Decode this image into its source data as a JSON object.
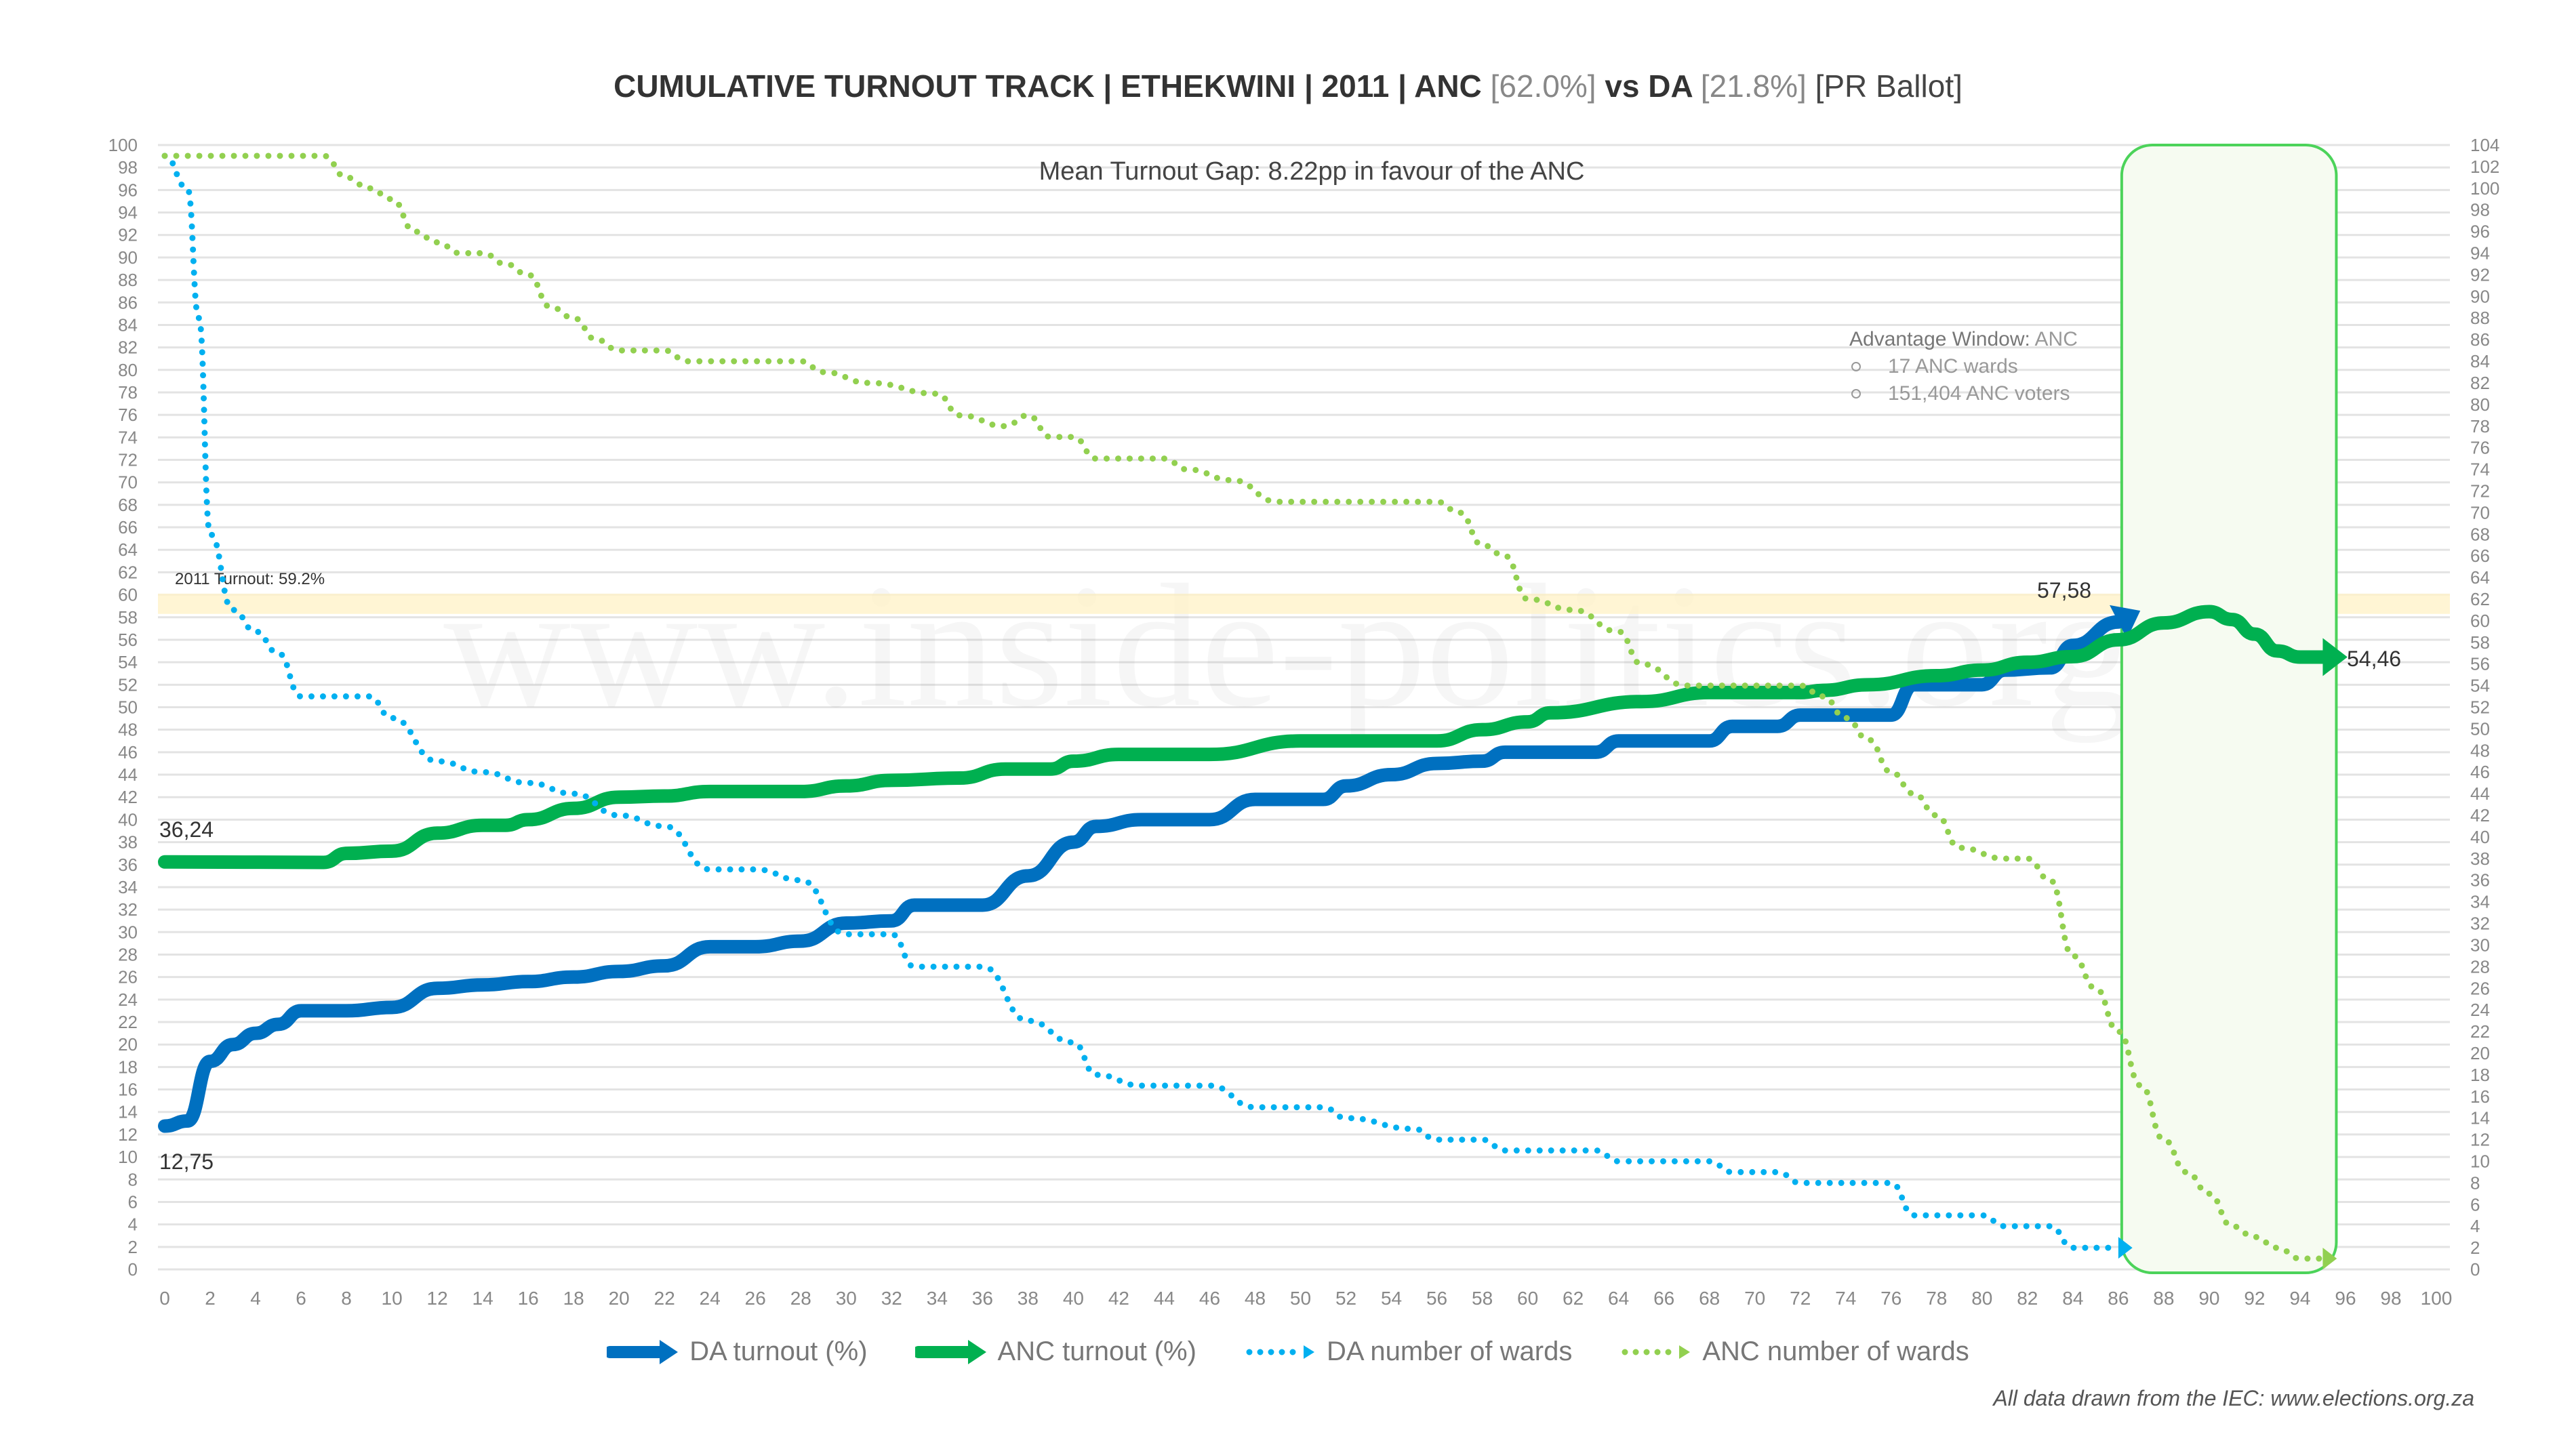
{
  "title": {
    "main": "CUMULATIVE TURNOUT TRACK | ETHEKWINI | 2011 | ANC ",
    "anc_pct": "[62.0%]",
    "vs": " vs DA ",
    "da_pct": "[21.8%]",
    "ballot": " [PR Ballot]"
  },
  "source": "All data drawn from the IEC: www.elections.org.za",
  "watermark": "www.inside-politics.org",
  "chart_data": {
    "type": "line",
    "title": "CUMULATIVE TURNOUT TRACK | ETHEKWINI | 2011 | ANC [62.0%] vs DA [21.8%] [PR Ballot]",
    "xlim": [
      0,
      100
    ],
    "ylim_left": [
      0,
      100
    ],
    "ylim_right": [
      0,
      104
    ],
    "grid": true,
    "legend": "bottom",
    "annotations": {
      "mean_gap": "Mean Turnout Gap: 8.22pp in favour of the ANC",
      "turnout_line_label": "2011 Turnout: 59.2%",
      "turnout_line_value": 59.2,
      "advantage_title": "Advantage Window:",
      "advantage_party": "ANC",
      "advantage_items": [
        "17 ANC wards",
        "151,404 ANC voters"
      ],
      "advantage_window": [
        86,
        95
      ],
      "labels": {
        "anc_start": "36,24",
        "da_start": "12,75",
        "da_end": "57,58",
        "anc_end": "54,46"
      }
    },
    "series": [
      {
        "name": "DA turnout (%)",
        "axis": "left",
        "color": "#0070C0",
        "style": "solid",
        "x": [
          0,
          1,
          2,
          3,
          4,
          5,
          6,
          8,
          10,
          12,
          14,
          16,
          18,
          20,
          22,
          24,
          26,
          28,
          30,
          32,
          33,
          36,
          38,
          40,
          41,
          43,
          46,
          48,
          51,
          52,
          54,
          56,
          58,
          59,
          63,
          64,
          68,
          69,
          71,
          72,
          76,
          77,
          80,
          81,
          83,
          84,
          86
        ],
        "y": [
          12.75,
          13.2,
          18.5,
          20,
          21,
          21.8,
          23,
          23,
          23.3,
          25,
          25.3,
          25.6,
          26,
          26.5,
          27,
          28.7,
          28.7,
          29.2,
          30.8,
          31,
          32.4,
          32.4,
          35,
          38,
          39.4,
          40,
          40,
          41.8,
          41.8,
          43,
          44,
          45,
          45.2,
          46,
          46,
          47,
          47,
          48.3,
          48.3,
          49.3,
          49.3,
          52,
          52,
          53.3,
          53.5,
          55.5,
          57.58
        ]
      },
      {
        "name": "ANC turnout (%)",
        "axis": "left",
        "color": "#00B050",
        "style": "solid",
        "x": [
          0,
          7,
          8,
          10,
          12,
          14,
          15,
          16,
          18,
          20,
          22,
          24,
          28,
          30,
          32,
          35,
          37,
          39,
          40,
          42,
          46,
          50,
          56,
          58,
          60,
          61,
          65,
          68,
          72,
          73,
          75,
          78,
          80,
          82,
          84,
          86,
          88,
          90,
          91,
          92,
          93,
          94,
          95
        ],
        "y": [
          36.24,
          36.2,
          37,
          37.2,
          38.8,
          39.5,
          39.5,
          40,
          41,
          42,
          42.1,
          42.5,
          42.5,
          43,
          43.5,
          43.7,
          44.5,
          44.5,
          45.2,
          45.8,
          45.8,
          47,
          47,
          48,
          48.7,
          49.5,
          50.5,
          51.3,
          51.3,
          51.5,
          52,
          52.8,
          53.3,
          54,
          54.5,
          56,
          57.5,
          58.5,
          57.8,
          56.5,
          55,
          54.46,
          54.46
        ]
      },
      {
        "name": "DA number of wards",
        "axis": "right",
        "color": "#00B0F0",
        "style": "dotted",
        "x": [
          0,
          1,
          1.5,
          2,
          3,
          4,
          5,
          6,
          8,
          9,
          10,
          12,
          14,
          16,
          18,
          20,
          22,
          24,
          26,
          28,
          30,
          32,
          33,
          36,
          38,
          40,
          41,
          43,
          46,
          48,
          51,
          52,
          55,
          56,
          58,
          59,
          63,
          64,
          68,
          69,
          71,
          72,
          76,
          77,
          80,
          81,
          83,
          84,
          86
        ],
        "y": [
          103,
          100,
          88,
          68,
          61,
          59,
          57,
          53,
          53,
          53,
          51,
          47,
          46,
          45,
          44,
          42,
          41,
          37,
          37,
          36,
          31,
          31,
          28,
          28,
          23,
          21,
          18,
          17,
          17,
          15,
          15,
          14,
          13,
          12,
          12,
          11,
          11,
          10,
          10,
          9,
          9,
          8,
          8,
          5,
          5,
          4,
          4,
          2,
          2
        ]
      },
      {
        "name": "ANC number of wards",
        "axis": "right",
        "color": "#92D050",
        "style": "dotted",
        "x": [
          0,
          7,
          8,
          9,
          10,
          11,
          12,
          13,
          14,
          15,
          16,
          17,
          18,
          19,
          20,
          22,
          23,
          28,
          29,
          31,
          34,
          35,
          37,
          38,
          39,
          40,
          41,
          44,
          45,
          47,
          49,
          56,
          57,
          58,
          59,
          60,
          62,
          64,
          65,
          67,
          72,
          73,
          74,
          75,
          76,
          77,
          78,
          79,
          81,
          82,
          83,
          84,
          85,
          86,
          87,
          88,
          89,
          90,
          91,
          92,
          93,
          94,
          95
        ],
        "y": [
          103,
          103,
          101,
          100,
          99,
          96,
          95,
          94,
          94,
          93,
          92,
          89,
          88,
          86,
          85,
          85,
          84,
          84,
          83,
          82,
          81,
          79,
          78,
          79,
          77,
          77,
          75,
          75,
          74,
          73,
          71,
          71,
          70,
          67,
          66,
          62,
          61,
          59,
          56,
          54,
          54,
          53,
          51,
          49,
          46,
          44,
          42,
          39,
          38,
          38,
          36,
          29,
          26,
          22,
          17,
          12,
          9,
          7,
          4,
          3,
          2,
          1,
          1
        ]
      }
    ]
  }
}
